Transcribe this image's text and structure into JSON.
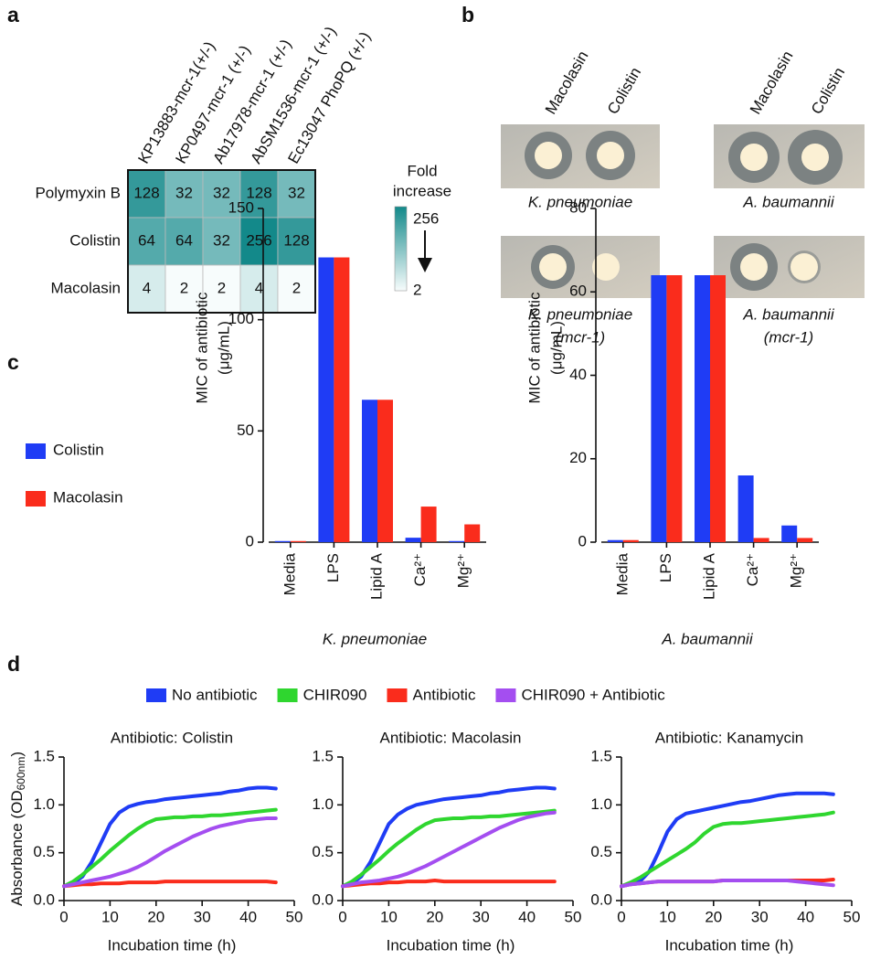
{
  "panel_labels": [
    "a",
    "b",
    "c",
    "d"
  ],
  "disk_assay": {
    "columns": [
      "Macolasin",
      "Colistin"
    ],
    "plates": [
      [
        "K. pneumoniae"
      ],
      [
        "A. baumannii"
      ],
      [
        "K. pneumoniae",
        "(mcr-1)"
      ],
      [
        "A. baumannii",
        "(mcr-1)"
      ]
    ]
  },
  "chart_data": [
    {
      "type": "heatmap",
      "categories": [
        "KP13883-mcr-1(+/-)",
        "KP0497-mcr-1 (+/-)",
        "Ab17978-mcr-1 (+/-)",
        "AbSM1536-mcr-1 (+/-)",
        "Ec13047 PhoPQ (+/-)"
      ],
      "rows": [
        "Polymyxin B",
        "Colistin",
        "Macolasin"
      ],
      "values": [
        [
          128,
          32,
          32,
          128,
          32
        ],
        [
          64,
          64,
          32,
          256,
          128
        ],
        [
          4,
          2,
          2,
          4,
          2
        ]
      ],
      "colorscale": [
        "#f7fcfc",
        "#13898a"
      ],
      "clim": [
        2,
        256
      ],
      "log_scale": true,
      "colorbar": {
        "label": [
          "Fold",
          "increase"
        ],
        "ticks": [
          256,
          2
        ]
      }
    },
    {
      "type": "bar",
      "ylabel": [
        "MIC of antibiotic",
        "(μg/mL)"
      ],
      "xlabel": "K. pneumoniae",
      "categories": [
        "Media",
        "LPS",
        "Lipid A",
        "Ca²⁺",
        "Mg²⁺"
      ],
      "series": [
        {
          "name": "Colistin",
          "color": "#1f3cf5",
          "values": [
            0.5,
            128,
            64,
            2,
            0.5
          ]
        },
        {
          "name": "Macolasin",
          "color": "#fa2c1c",
          "values": [
            0.5,
            128,
            64,
            16,
            8
          ]
        }
      ],
      "ylim": [
        0,
        150
      ],
      "yticks": [
        0,
        50,
        100,
        150
      ]
    },
    {
      "type": "bar",
      "ylabel": [
        "MIC of antibiotic",
        "(μg/mL)"
      ],
      "xlabel": "A. baumannii",
      "categories": [
        "Media",
        "LPS",
        "Lipid A",
        "Ca²⁺",
        "Mg²⁺"
      ],
      "series": [
        {
          "color": "#1f3cf5",
          "values": [
            0.5,
            64,
            64,
            16,
            4
          ]
        },
        {
          "color": "#fa2c1c",
          "values": [
            0.5,
            64,
            64,
            1,
            1
          ]
        }
      ],
      "ylim": [
        0,
        80
      ],
      "yticks": [
        0,
        20,
        40,
        60,
        80
      ]
    },
    {
      "type": "line",
      "title": "Antibiotic: Colistin",
      "xlabel": "Incubation time (h)",
      "ylabel": [
        "Absorbance (OD",
        "600nm",
        ")"
      ],
      "x": [
        0,
        2,
        4,
        6,
        8,
        10,
        12,
        14,
        16,
        18,
        20,
        22,
        24,
        26,
        28,
        30,
        32,
        34,
        36,
        38,
        40,
        42,
        44,
        46
      ],
      "series": [
        {
          "name": "No antibiotic",
          "color": "#1f3cf5",
          "values": [
            0.15,
            0.18,
            0.25,
            0.4,
            0.6,
            0.8,
            0.92,
            0.98,
            1.01,
            1.03,
            1.04,
            1.06,
            1.07,
            1.08,
            1.09,
            1.1,
            1.11,
            1.12,
            1.14,
            1.15,
            1.17,
            1.18,
            1.18,
            1.17
          ]
        },
        {
          "name": "CHIR090",
          "color": "#2fd62f",
          "values": [
            0.15,
            0.2,
            0.27,
            0.35,
            0.43,
            0.52,
            0.6,
            0.68,
            0.75,
            0.81,
            0.85,
            0.86,
            0.87,
            0.87,
            0.88,
            0.88,
            0.89,
            0.89,
            0.9,
            0.91,
            0.92,
            0.93,
            0.94,
            0.95
          ]
        },
        {
          "name": "Antibiotic",
          "color": "#fa2c1c",
          "values": [
            0.15,
            0.16,
            0.17,
            0.17,
            0.18,
            0.18,
            0.18,
            0.19,
            0.19,
            0.19,
            0.19,
            0.2,
            0.2,
            0.2,
            0.2,
            0.2,
            0.2,
            0.2,
            0.2,
            0.2,
            0.2,
            0.2,
            0.2,
            0.19
          ]
        },
        {
          "name": "CHIR090 + Antibiotic",
          "color": "#a44ef0",
          "values": [
            0.15,
            0.17,
            0.19,
            0.21,
            0.23,
            0.25,
            0.28,
            0.31,
            0.35,
            0.4,
            0.46,
            0.52,
            0.57,
            0.62,
            0.67,
            0.71,
            0.75,
            0.78,
            0.8,
            0.82,
            0.84,
            0.85,
            0.86,
            0.86
          ]
        }
      ],
      "xlim": [
        0,
        50
      ],
      "xticks": [
        0,
        10,
        20,
        30,
        40,
        50
      ],
      "ylim": [
        0,
        1.5
      ],
      "yticks": [
        {
          "value": 0,
          "label": "0.0"
        },
        0.5,
        {
          "value": 1,
          "label": "1.0"
        },
        1.5
      ]
    },
    {
      "type": "line",
      "title": "Antibiotic: Macolasin",
      "xlabel": "Incubation time (h)",
      "x": [
        0,
        2,
        4,
        6,
        8,
        10,
        12,
        14,
        16,
        18,
        20,
        22,
        24,
        26,
        28,
        30,
        32,
        34,
        36,
        38,
        40,
        42,
        44,
        46
      ],
      "series": [
        {
          "color": "#1f3cf5",
          "values": [
            0.15,
            0.18,
            0.25,
            0.4,
            0.6,
            0.8,
            0.9,
            0.96,
            1.0,
            1.02,
            1.04,
            1.06,
            1.07,
            1.08,
            1.09,
            1.1,
            1.12,
            1.13,
            1.15,
            1.16,
            1.17,
            1.18,
            1.18,
            1.17
          ]
        },
        {
          "color": "#2fd62f",
          "values": [
            0.15,
            0.2,
            0.27,
            0.35,
            0.43,
            0.52,
            0.6,
            0.67,
            0.74,
            0.8,
            0.84,
            0.85,
            0.86,
            0.86,
            0.87,
            0.87,
            0.88,
            0.88,
            0.89,
            0.9,
            0.91,
            0.92,
            0.93,
            0.94
          ]
        },
        {
          "color": "#fa2c1c",
          "values": [
            0.15,
            0.16,
            0.17,
            0.18,
            0.18,
            0.19,
            0.19,
            0.2,
            0.2,
            0.2,
            0.21,
            0.2,
            0.2,
            0.2,
            0.2,
            0.2,
            0.2,
            0.2,
            0.2,
            0.2,
            0.2,
            0.2,
            0.2,
            0.2
          ]
        },
        {
          "color": "#a44ef0",
          "values": [
            0.15,
            0.17,
            0.19,
            0.2,
            0.21,
            0.23,
            0.25,
            0.28,
            0.32,
            0.36,
            0.41,
            0.46,
            0.51,
            0.56,
            0.61,
            0.66,
            0.71,
            0.76,
            0.8,
            0.84,
            0.87,
            0.89,
            0.91,
            0.92
          ]
        }
      ],
      "xlim": [
        0,
        50
      ],
      "xticks": [
        0,
        10,
        20,
        30,
        40,
        50
      ],
      "ylim": [
        0,
        1.5
      ],
      "yticks": [
        {
          "value": 0,
          "label": "0.0"
        },
        0.5,
        {
          "value": 1,
          "label": "1.0"
        },
        1.5
      ]
    },
    {
      "type": "line",
      "title": "Antibiotic: Kanamycin",
      "xlabel": "Incubation time (h)",
      "x": [
        0,
        2,
        4,
        6,
        8,
        10,
        12,
        14,
        16,
        18,
        20,
        22,
        24,
        26,
        28,
        30,
        32,
        34,
        36,
        38,
        40,
        42,
        44,
        46
      ],
      "series": [
        {
          "color": "#1f3cf5",
          "values": [
            0.15,
            0.17,
            0.2,
            0.3,
            0.5,
            0.72,
            0.85,
            0.91,
            0.93,
            0.95,
            0.97,
            0.99,
            1.01,
            1.03,
            1.04,
            1.06,
            1.08,
            1.1,
            1.11,
            1.12,
            1.12,
            1.12,
            1.12,
            1.11
          ]
        },
        {
          "color": "#2fd62f",
          "values": [
            0.15,
            0.19,
            0.24,
            0.3,
            0.36,
            0.42,
            0.48,
            0.54,
            0.61,
            0.7,
            0.77,
            0.8,
            0.81,
            0.81,
            0.82,
            0.83,
            0.84,
            0.85,
            0.86,
            0.87,
            0.88,
            0.89,
            0.9,
            0.92
          ]
        },
        {
          "color": "#fa2c1c",
          "values": [
            0.15,
            0.17,
            0.18,
            0.19,
            0.2,
            0.2,
            0.2,
            0.2,
            0.2,
            0.2,
            0.2,
            0.21,
            0.21,
            0.21,
            0.21,
            0.21,
            0.21,
            0.21,
            0.21,
            0.21,
            0.21,
            0.21,
            0.21,
            0.22
          ]
        },
        {
          "color": "#a44ef0",
          "values": [
            0.15,
            0.17,
            0.18,
            0.19,
            0.2,
            0.2,
            0.2,
            0.2,
            0.2,
            0.2,
            0.2,
            0.21,
            0.21,
            0.21,
            0.21,
            0.21,
            0.21,
            0.21,
            0.21,
            0.2,
            0.19,
            0.18,
            0.17,
            0.16
          ]
        }
      ],
      "xlim": [
        0,
        50
      ],
      "xticks": [
        0,
        10,
        20,
        30,
        40,
        50
      ],
      "ylim": [
        0,
        1.5
      ],
      "yticks": [
        {
          "value": 0,
          "label": "0.0"
        },
        0.5,
        {
          "value": 1,
          "label": "1.0"
        },
        1.5
      ]
    }
  ]
}
